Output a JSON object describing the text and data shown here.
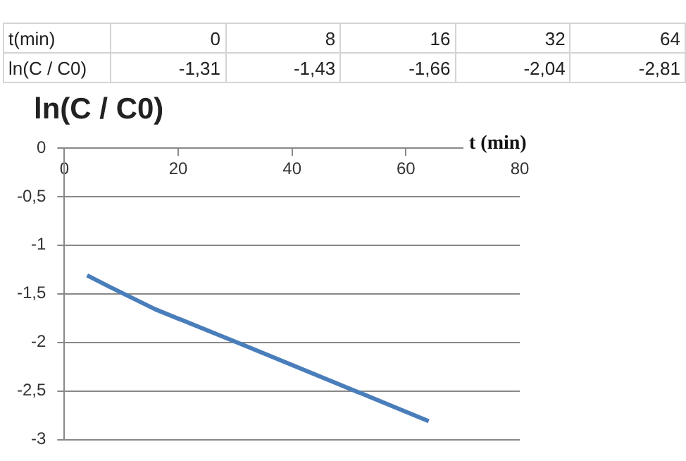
{
  "chart_data": {
    "type": "line",
    "title": "ln(C / C0)",
    "xlabel": "t (min)",
    "x": [
      4,
      8,
      16,
      32,
      64
    ],
    "series": [
      {
        "color": "#4a7ebb",
        "values": [
          -1.31,
          -1.43,
          -1.66,
          -2.04,
          -2.81
        ]
      }
    ],
    "annotations": [
      "t(min)",
      "0",
      "8",
      "16",
      "32",
      "64",
      "ln(C / C0)",
      "-1,31",
      "-1,43",
      "-1,66",
      "-2,04",
      "-2,81"
    ],
    "xlim": [
      0,
      80
    ],
    "xticks": [
      0,
      20,
      40,
      60,
      80
    ],
    "ylim": [
      -3,
      0
    ],
    "yticks": [
      -3,
      {
        "value": -2.5,
        "label": "-2,5"
      },
      -2,
      {
        "value": -1.5,
        "label": "-1,5"
      },
      -1,
      {
        "value": -0.5,
        "label": "-0,5"
      },
      0
    ],
    "grid": "y",
    "legend": false,
    "marker": "none",
    "line_style": "solid"
  }
}
